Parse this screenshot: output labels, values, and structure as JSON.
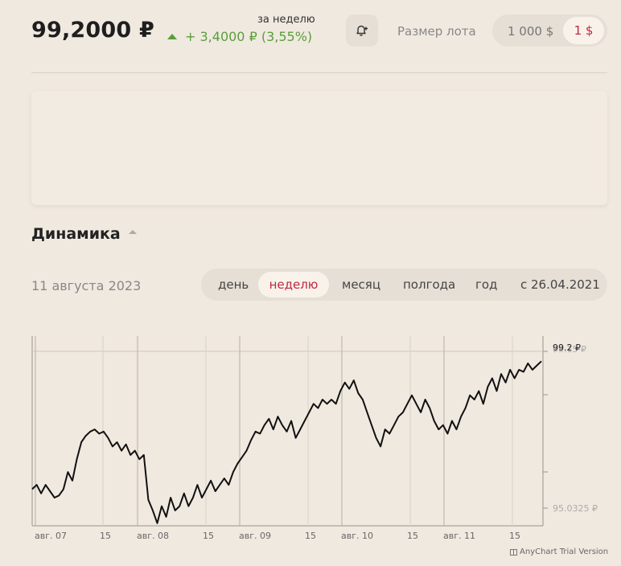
{
  "header": {
    "price": "99,2000 ₽",
    "period_label": "за неделю",
    "change": "+ 3,4000 ₽ (3,55%)",
    "change_color": "#5a9e3a",
    "lot_label": "Размер лота",
    "lot_options": [
      "1 000 $",
      "1 $"
    ],
    "lot_selected": "1 $",
    "accent_color": "#c0293f"
  },
  "section": {
    "title": "Динамика",
    "date": "11 августа 2023",
    "periods": [
      "день",
      "неделю",
      "месяц",
      "полгода",
      "год",
      "с 26.04.2021"
    ],
    "active_period": "неделю"
  },
  "chart_data": {
    "type": "line",
    "x_tick_labels": [
      "авг. 07",
      "15",
      "авг. 08",
      "15",
      "авг. 09",
      "15",
      "авг. 10",
      "15",
      "авг. 11",
      "15"
    ],
    "y_labels": [
      "99.2 ₽",
      "99.15 ₽",
      "95.0325 ₽"
    ],
    "ylim": [
      95.0325,
      99.2
    ],
    "last_value": 99.2,
    "grid": true,
    "series": [
      {
        "values": [
          96.2,
          96.3,
          96.1,
          96.3,
          96.15,
          96.0,
          96.05,
          96.2,
          96.6,
          96.4,
          96.9,
          97.3,
          97.45,
          97.55,
          97.6,
          97.5,
          97.55,
          97.4,
          97.2,
          97.3,
          97.1,
          97.25,
          97.0,
          97.1,
          96.9,
          97.0,
          95.95,
          95.7,
          95.4,
          95.8,
          95.55,
          96.0,
          95.7,
          95.8,
          96.1,
          95.8,
          96.0,
          96.3,
          96.0,
          96.2,
          96.4,
          96.15,
          96.3,
          96.45,
          96.3,
          96.6,
          96.8,
          96.95,
          97.1,
          97.35,
          97.55,
          97.5,
          97.7,
          97.85,
          97.6,
          97.9,
          97.7,
          97.55,
          97.8,
          97.4,
          97.6,
          97.8,
          98.0,
          98.2,
          98.1,
          98.3,
          98.2,
          98.3,
          98.2,
          98.5,
          98.7,
          98.55,
          98.75,
          98.45,
          98.3,
          98.0,
          97.7,
          97.4,
          97.2,
          97.6,
          97.5,
          97.7,
          97.9,
          98.0,
          98.2,
          98.4,
          98.2,
          98.0,
          98.3,
          98.1,
          97.8,
          97.6,
          97.7,
          97.5,
          97.8,
          97.6,
          97.9,
          98.1,
          98.4,
          98.3,
          98.5,
          98.2,
          98.6,
          98.8,
          98.5,
          98.9,
          98.7,
          99.0,
          98.8,
          99.0,
          98.95,
          99.15,
          99.0,
          99.1,
          99.2
        ]
      }
    ]
  }
}
